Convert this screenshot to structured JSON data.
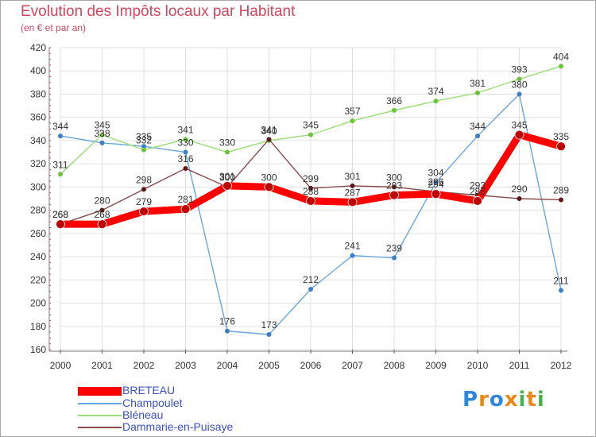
{
  "title": "Evolution des Impôts locaux par Habitant",
  "subtitle": "(en € et par an)",
  "logo": {
    "text": "Proxiti",
    "letters": [
      "P",
      "r",
      "o",
      "x",
      "i",
      "t",
      "i"
    ],
    "letter_colors": [
      "#2e86de",
      "#e8891a",
      "#2e86de",
      "#e8891a",
      "#4caf50",
      "#e8891a",
      "#4caf50"
    ]
  },
  "chart_data": {
    "type": "line",
    "title": "Evolution des Impôts locaux par Habitant",
    "subtitle": "(en € et par an)",
    "xlabel": "",
    "ylabel": "",
    "x": [
      "2000",
      "2001",
      "2002",
      "2003",
      "2004",
      "2005",
      "2006",
      "2007",
      "2008",
      "2009",
      "2010",
      "2011",
      "2012"
    ],
    "ylim": [
      160,
      420
    ],
    "yticks": [
      "160",
      "180",
      "200",
      "220",
      "240",
      "260",
      "280",
      "300",
      "320",
      "340",
      "360",
      "380",
      "400",
      "420"
    ],
    "grid": true,
    "legend_position": "bottom-left",
    "series": [
      {
        "name": "BRETEAU",
        "color": "#ff0000",
        "marker_color": "#c00000",
        "emphasis": true,
        "values": [
          268,
          268,
          279,
          281,
          301,
          300,
          288,
          287,
          293,
          294,
          288,
          345,
          335
        ],
        "labels": [
          "268",
          "268",
          "279",
          "281",
          "301",
          "300",
          "288",
          "287",
          "293",
          "294",
          "288",
          "345",
          "335"
        ]
      },
      {
        "name": "Champoulet",
        "color": "#6aa6dc",
        "marker_color": "#3a7fc8",
        "emphasis": false,
        "values": [
          344,
          338,
          335,
          330,
          176,
          173,
          212,
          241,
          239,
          304,
          344,
          380,
          211
        ],
        "labels": [
          "344",
          "338",
          "335",
          "330",
          "176",
          "173",
          "212",
          "241",
          "239",
          "304",
          "344",
          "380",
          "211"
        ]
      },
      {
        "name": "Bléneau",
        "color": "#99dd77",
        "marker_color": "#6cc23a",
        "emphasis": false,
        "values": [
          311,
          345,
          332,
          341,
          330,
          340,
          345,
          357,
          366,
          374,
          381,
          393,
          404
        ],
        "labels": [
          "311",
          "345",
          "332",
          "341",
          "330",
          "340",
          "345",
          "357",
          "366",
          "374",
          "381",
          "393",
          "404"
        ]
      },
      {
        "name": "Dammarie-en-Puisaye",
        "color": "#8b4a4a",
        "marker_color": "#5a1a1a",
        "emphasis": false,
        "values": [
          268,
          280,
          298,
          316,
          300,
          341,
          299,
          301,
          300,
          296,
          293,
          290,
          289
        ],
        "labels": [
          "268",
          "280",
          "298",
          "316",
          "300",
          "341",
          "299",
          "301",
          "300",
          "296",
          "293",
          "290",
          "289"
        ]
      }
    ]
  }
}
